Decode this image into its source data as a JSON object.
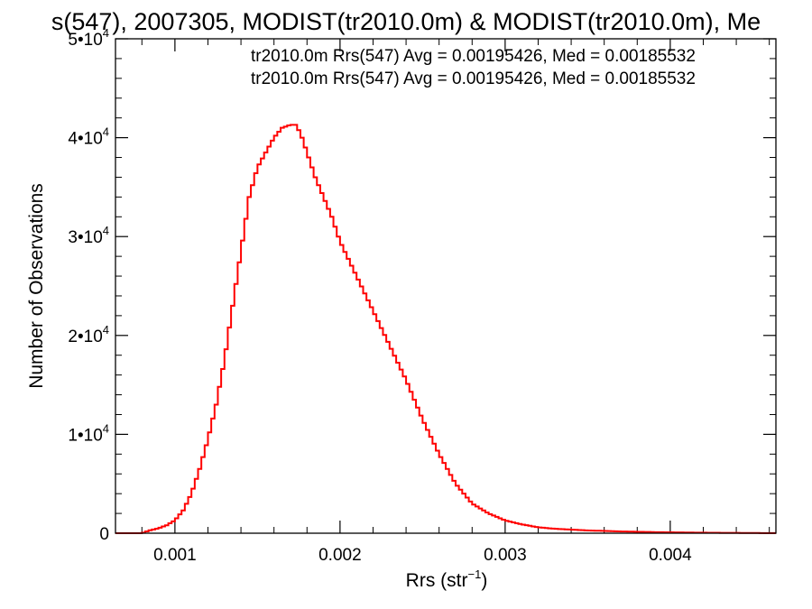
{
  "chart_data": {
    "type": "line",
    "title": "s(547), 2007305, MODIST(tr2010.0m) & MODIST(tr2010.0m), Me",
    "xlabel": "Rrs (str",
    "xlabel_sup": "−1",
    "xlabel_close": ")",
    "ylabel": "Number of Observations",
    "xlim": [
      0.00064,
      0.00464
    ],
    "ylim": [
      0,
      50000
    ],
    "x_ticks": [
      {
        "value": 0.001,
        "label": "0.001"
      },
      {
        "value": 0.002,
        "label": "0.002"
      },
      {
        "value": 0.003,
        "label": "0.003"
      },
      {
        "value": 0.004,
        "label": "0.004"
      }
    ],
    "y_ticks": [
      {
        "value": 0,
        "base": "0",
        "exp": ""
      },
      {
        "value": 10000,
        "base": "1•10",
        "exp": "4"
      },
      {
        "value": 20000,
        "base": "2•10",
        "exp": "4"
      },
      {
        "value": 30000,
        "base": "3•10",
        "exp": "4"
      },
      {
        "value": 40000,
        "base": "4•10",
        "exp": "4"
      },
      {
        "value": 50000,
        "base": "5•10",
        "exp": "4"
      }
    ],
    "annotations": [
      {
        "text": "tr2010.0m Rrs(547) Avg = 0.00195426, Med = 0.00185532",
        "color": "#000000"
      },
      {
        "text": "tr2010.0m Rrs(547) Avg = 0.00195426, Med = 0.00185532",
        "color": "#ff0000"
      }
    ],
    "series": [
      {
        "color": "#ff0000",
        "x": [
          0.00064,
          0.0008,
          0.00085,
          0.0009,
          0.00095,
          0.001,
          0.00105,
          0.0011,
          0.00115,
          0.0012,
          0.00125,
          0.0013,
          0.00135,
          0.0014,
          0.00145,
          0.0015,
          0.00155,
          0.0016,
          0.00165,
          0.0017,
          0.00173,
          0.00176,
          0.0018,
          0.00185,
          0.0019,
          0.00195,
          0.002,
          0.0021,
          0.0022,
          0.0023,
          0.0024,
          0.0025,
          0.0026,
          0.0027,
          0.0028,
          0.0029,
          0.003,
          0.0031,
          0.0032,
          0.0033,
          0.0035,
          0.0037,
          0.0039,
          0.0041,
          0.0043,
          0.0045,
          0.00464
        ],
        "y": [
          0,
          0,
          300,
          500,
          800,
          1300,
          2300,
          4000,
          6500,
          9500,
          13000,
          17500,
          23000,
          28500,
          34000,
          37000,
          38500,
          40000,
          41000,
          41300,
          41300,
          40500,
          38500,
          36000,
          34000,
          32000,
          29500,
          26000,
          22500,
          19000,
          15500,
          11500,
          8000,
          5000,
          3000,
          2000,
          1300,
          900,
          600,
          450,
          280,
          180,
          110,
          70,
          40,
          20,
          10
        ]
      }
    ]
  }
}
